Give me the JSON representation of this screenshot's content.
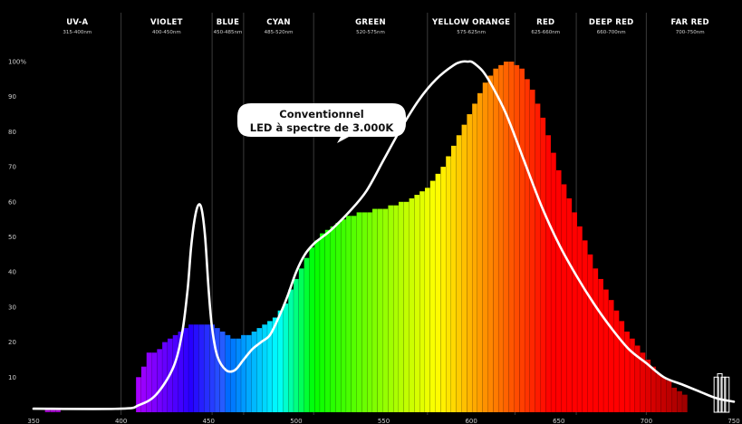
{
  "chart_data": {
    "type": "bar",
    "xlim": [
      350,
      750
    ],
    "ylim": [
      0,
      100
    ],
    "x_ticks": [
      "350",
      "400",
      "450",
      "500",
      "550",
      "600",
      "650",
      "700",
      "750"
    ],
    "y_ticks": [
      "10",
      "20",
      "30",
      "40",
      "50",
      "60",
      "70",
      "80",
      "90",
      "100%"
    ],
    "bands": [
      {
        "name": "UV-A",
        "range": "315-400nm",
        "start": 350,
        "end": 400
      },
      {
        "name": "VIOLET",
        "range": "400-450nm",
        "start": 400,
        "end": 452
      },
      {
        "name": "BLUE",
        "range": "450-485nm",
        "start": 452,
        "end": 470
      },
      {
        "name": "CYAN",
        "range": "485-520nm",
        "start": 470,
        "end": 510
      },
      {
        "name": "GREEN",
        "range": "520-575nm",
        "start": 510,
        "end": 575
      },
      {
        "name": "YELLOW ORANGE",
        "range": "575-625nm",
        "start": 575,
        "end": 625
      },
      {
        "name": "RED",
        "range": "625-660nm",
        "start": 625,
        "end": 660
      },
      {
        "name": "DEEP RED",
        "range": "660-700nm",
        "start": 660,
        "end": 700
      },
      {
        "name": "FAR RED",
        "range": "700-750nm",
        "start": 700,
        "end": 750
      }
    ],
    "bars": [
      {
        "x": 358,
        "y": 1
      },
      {
        "x": 361,
        "y": 1
      },
      {
        "x": 364,
        "y": 1
      },
      {
        "x": 410,
        "y": 10
      },
      {
        "x": 413,
        "y": 13
      },
      {
        "x": 416,
        "y": 17
      },
      {
        "x": 419,
        "y": 17
      },
      {
        "x": 422,
        "y": 18
      },
      {
        "x": 425,
        "y": 20
      },
      {
        "x": 428,
        "y": 21
      },
      {
        "x": 431,
        "y": 22
      },
      {
        "x": 434,
        "y": 23
      },
      {
        "x": 437,
        "y": 24
      },
      {
        "x": 440,
        "y": 25
      },
      {
        "x": 443,
        "y": 25
      },
      {
        "x": 446,
        "y": 25
      },
      {
        "x": 449,
        "y": 25
      },
      {
        "x": 452,
        "y": 25
      },
      {
        "x": 455,
        "y": 24
      },
      {
        "x": 458,
        "y": 23
      },
      {
        "x": 461,
        "y": 22
      },
      {
        "x": 464,
        "y": 21
      },
      {
        "x": 467,
        "y": 21
      },
      {
        "x": 470,
        "y": 22
      },
      {
        "x": 473,
        "y": 22
      },
      {
        "x": 476,
        "y": 23
      },
      {
        "x": 479,
        "y": 24
      },
      {
        "x": 482,
        "y": 25
      },
      {
        "x": 485,
        "y": 26
      },
      {
        "x": 488,
        "y": 27
      },
      {
        "x": 491,
        "y": 29
      },
      {
        "x": 494,
        "y": 31
      },
      {
        "x": 497,
        "y": 35
      },
      {
        "x": 500,
        "y": 38
      },
      {
        "x": 503,
        "y": 41
      },
      {
        "x": 506,
        "y": 44
      },
      {
        "x": 509,
        "y": 47
      },
      {
        "x": 512,
        "y": 49
      },
      {
        "x": 515,
        "y": 51
      },
      {
        "x": 518,
        "y": 52
      },
      {
        "x": 521,
        "y": 53
      },
      {
        "x": 524,
        "y": 54
      },
      {
        "x": 527,
        "y": 55
      },
      {
        "x": 530,
        "y": 56
      },
      {
        "x": 533,
        "y": 56
      },
      {
        "x": 536,
        "y": 57
      },
      {
        "x": 539,
        "y": 57
      },
      {
        "x": 542,
        "y": 57
      },
      {
        "x": 545,
        "y": 58
      },
      {
        "x": 548,
        "y": 58
      },
      {
        "x": 551,
        "y": 58
      },
      {
        "x": 554,
        "y": 59
      },
      {
        "x": 557,
        "y": 59
      },
      {
        "x": 560,
        "y": 60
      },
      {
        "x": 563,
        "y": 60
      },
      {
        "x": 566,
        "y": 61
      },
      {
        "x": 569,
        "y": 62
      },
      {
        "x": 572,
        "y": 63
      },
      {
        "x": 575,
        "y": 64
      },
      {
        "x": 578,
        "y": 66
      },
      {
        "x": 581,
        "y": 68
      },
      {
        "x": 584,
        "y": 70
      },
      {
        "x": 587,
        "y": 73
      },
      {
        "x": 590,
        "y": 76
      },
      {
        "x": 593,
        "y": 79
      },
      {
        "x": 596,
        "y": 82
      },
      {
        "x": 599,
        "y": 85
      },
      {
        "x": 602,
        "y": 88
      },
      {
        "x": 605,
        "y": 91
      },
      {
        "x": 608,
        "y": 94
      },
      {
        "x": 611,
        "y": 96
      },
      {
        "x": 614,
        "y": 98
      },
      {
        "x": 617,
        "y": 99
      },
      {
        "x": 620,
        "y": 100
      },
      {
        "x": 623,
        "y": 100
      },
      {
        "x": 626,
        "y": 99
      },
      {
        "x": 629,
        "y": 98
      },
      {
        "x": 632,
        "y": 95
      },
      {
        "x": 635,
        "y": 92
      },
      {
        "x": 638,
        "y": 88
      },
      {
        "x": 641,
        "y": 84
      },
      {
        "x": 644,
        "y": 79
      },
      {
        "x": 647,
        "y": 74
      },
      {
        "x": 650,
        "y": 69
      },
      {
        "x": 653,
        "y": 65
      },
      {
        "x": 656,
        "y": 61
      },
      {
        "x": 659,
        "y": 57
      },
      {
        "x": 662,
        "y": 53
      },
      {
        "x": 665,
        "y": 49
      },
      {
        "x": 668,
        "y": 45
      },
      {
        "x": 671,
        "y": 41
      },
      {
        "x": 674,
        "y": 38
      },
      {
        "x": 677,
        "y": 35
      },
      {
        "x": 680,
        "y": 32
      },
      {
        "x": 683,
        "y": 29
      },
      {
        "x": 686,
        "y": 26
      },
      {
        "x": 689,
        "y": 23
      },
      {
        "x": 692,
        "y": 21
      },
      {
        "x": 695,
        "y": 19
      },
      {
        "x": 698,
        "y": 17
      },
      {
        "x": 701,
        "y": 15
      },
      {
        "x": 704,
        "y": 13
      },
      {
        "x": 707,
        "y": 11
      },
      {
        "x": 710,
        "y": 10
      },
      {
        "x": 713,
        "y": 9
      },
      {
        "x": 716,
        "y": 7
      },
      {
        "x": 719,
        "y": 6
      },
      {
        "x": 722,
        "y": 5
      }
    ],
    "outline_bars": [
      {
        "x": 740,
        "y": 10
      },
      {
        "x": 742,
        "y": 11
      },
      {
        "x": 744,
        "y": 10
      },
      {
        "x": 746,
        "y": 10
      }
    ],
    "series": [
      {
        "name": "Conventionnel LED à spectre de 3.000K",
        "x": [
          350,
          400,
          410,
          420,
          430,
          435,
          438,
          440,
          442,
          444,
          446,
          448,
          450,
          452,
          455,
          460,
          465,
          470,
          475,
          480,
          485,
          490,
          495,
          500,
          505,
          510,
          515,
          520,
          530,
          540,
          550,
          560,
          570,
          580,
          590,
          595,
          598,
          600,
          603,
          607,
          612,
          620,
          630,
          640,
          650,
          660,
          670,
          680,
          690,
          700,
          710,
          720,
          730,
          740,
          750
        ],
        "y": [
          1,
          1,
          2,
          5,
          13,
          23,
          35,
          47,
          55,
          59,
          58,
          50,
          35,
          24,
          16,
          12,
          12,
          15,
          18,
          20,
          22,
          27,
          33,
          40,
          45,
          48,
          50,
          52,
          57,
          63,
          72,
          81,
          89,
          95,
          99,
          100,
          100,
          100,
          99,
          97,
          93,
          85,
          72,
          59,
          48,
          39,
          31,
          24,
          18,
          14,
          10,
          8,
          6,
          4,
          3
        ]
      }
    ]
  }
}
